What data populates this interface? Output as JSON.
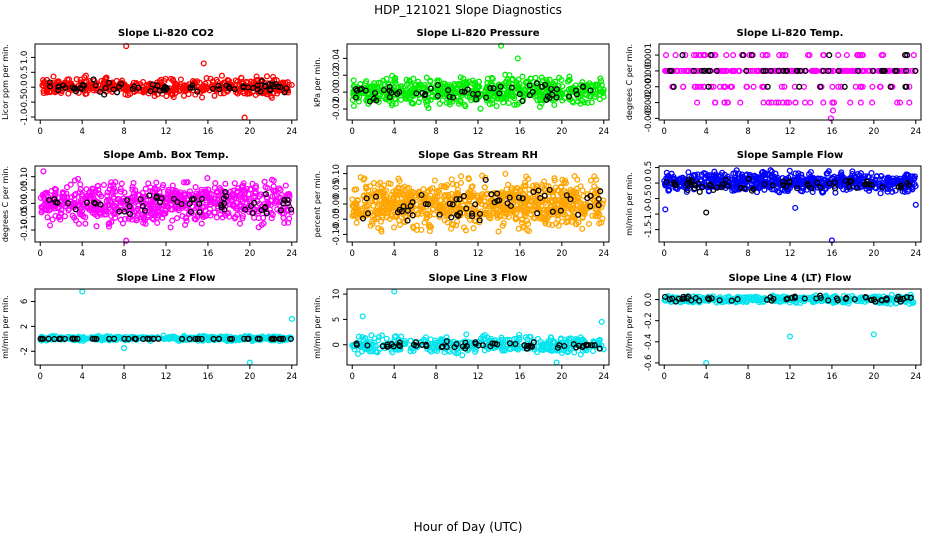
{
  "figure": {
    "title": "HDP_121021  Slope Diagnostics",
    "xlabel": "Hour of Day (UTC)"
  },
  "chart_data": [
    {
      "type": "scatter",
      "title": "Slope Li-820 CO2",
      "ylabel": "Licor ppm per min.",
      "xlim": [
        -0.5,
        24.5
      ],
      "ylim": [
        -1.1,
        1.45
      ],
      "yticks": [
        -1.0,
        -0.5,
        0.0,
        0.5,
        1.0
      ],
      "ytick_labels": [
        "-1.0",
        "-0.5",
        "0.0",
        "0.5",
        "1.0"
      ],
      "xticks": [
        0,
        4,
        8,
        12,
        16,
        20,
        24
      ],
      "xtick_labels": [
        "0",
        "4",
        "8",
        "12",
        "16",
        "20",
        "24"
      ],
      "series": [
        {
          "name": "points",
          "color": "#ff0000",
          "kind": "uniform",
          "count": 480,
          "y_min": -0.4,
          "y_max": 0.42
        },
        {
          "name": "hourly",
          "color": "#000000",
          "kind": "uniform",
          "count": 70,
          "y_min": -0.28,
          "y_max": 0.28
        }
      ],
      "outliers": [
        {
          "x": 8.2,
          "y": 1.38,
          "color": "#ff0000"
        },
        {
          "x": 19.5,
          "y": -1.02,
          "color": "#ff0000"
        },
        {
          "x": 15.6,
          "y": 0.8,
          "color": "#ff0000"
        }
      ]
    },
    {
      "type": "scatter",
      "title": "Slope Li-820 Pressure",
      "ylabel": "kPa per min.",
      "xlim": [
        -0.5,
        24.5
      ],
      "ylim": [
        -0.033,
        0.057
      ],
      "yticks": [
        -0.02,
        0.0,
        0.02,
        0.04
      ],
      "ytick_labels": [
        "-0.02",
        "0.00",
        "0.02",
        "0.04"
      ],
      "xticks": [
        0,
        4,
        8,
        12,
        16,
        20,
        24
      ],
      "xtick_labels": [
        "0",
        "4",
        "8",
        "12",
        "16",
        "20",
        "24"
      ],
      "series": [
        {
          "name": "points",
          "color": "#00ee00",
          "kind": "uniform",
          "count": 620,
          "y_min": -0.022,
          "y_max": 0.024
        },
        {
          "name": "hourly",
          "color": "#000000",
          "kind": "uniform",
          "count": 60,
          "y_min": -0.016,
          "y_max": 0.016
        }
      ],
      "outliers": [
        {
          "x": 14.2,
          "y": 0.055,
          "color": "#00ee00"
        },
        {
          "x": 15.8,
          "y": 0.04,
          "color": "#00ee00"
        }
      ]
    },
    {
      "type": "scatter",
      "title": "Slope Li-820 Temp.",
      "ylabel": "degrees C per min.",
      "xlim": [
        -0.5,
        24.5
      ],
      "ylim": [
        -0.0031,
        0.0017
      ],
      "yticks": [
        -0.003,
        -0.002,
        -0.001,
        0.0,
        0.001
      ],
      "ytick_labels": [
        "-0.003",
        "-0.002",
        "-0.001",
        "0.000",
        "0.001"
      ],
      "xticks": [
        0,
        4,
        8,
        12,
        16,
        20,
        24
      ],
      "xtick_labels": [
        "0",
        "4",
        "8",
        "12",
        "16",
        "20",
        "24"
      ],
      "series": [
        {
          "name": "points",
          "color": "#ff00ff",
          "kind": "levels",
          "count": 300,
          "levels": [
            0.0,
            0.0,
            0.0,
            0.0,
            0.0,
            0.001,
            -0.001,
            -0.002
          ]
        },
        {
          "name": "hourly",
          "color": "#000000",
          "kind": "levels",
          "count": 48,
          "levels": [
            0.0,
            0.0,
            0.0,
            0.0,
            0.001,
            -0.001
          ]
        }
      ],
      "outliers": [
        {
          "x": 15.9,
          "y": -0.003,
          "color": "#ff00ff"
        },
        {
          "x": 16.1,
          "y": -0.0025,
          "color": "#ff00ff"
        }
      ]
    },
    {
      "type": "scatter",
      "title": "Slope Amb. Box Temp.",
      "ylabel": "degrees C per min.",
      "xlim": [
        -0.5,
        24.5
      ],
      "ylim": [
        -0.145,
        0.14
      ],
      "yticks": [
        -0.1,
        -0.05,
        0.0,
        0.05,
        0.1
      ],
      "ytick_labels": [
        "-0.10",
        "-0.05",
        "0.00",
        "0.05",
        "0.10"
      ],
      "xticks": [
        0,
        4,
        8,
        12,
        16,
        20,
        24
      ],
      "xtick_labels": [
        "0",
        "4",
        "8",
        "12",
        "16",
        "20",
        "24"
      ],
      "series": [
        {
          "name": "points",
          "color": "#ff00ff",
          "kind": "uniform",
          "count": 700,
          "y_min": -0.11,
          "y_max": 0.11
        },
        {
          "name": "hourly",
          "color": "#000000",
          "kind": "uniform",
          "count": 55,
          "y_min": -0.06,
          "y_max": 0.06
        }
      ],
      "outliers": [
        {
          "x": 0.3,
          "y": 0.12,
          "color": "#ff00ff"
        },
        {
          "x": 8.2,
          "y": -0.14,
          "color": "#ff00ff"
        }
      ]
    },
    {
      "type": "scatter",
      "title": "Slope Gas Stream RH",
      "ylabel": "percent per min.",
      "xlim": [
        -0.5,
        24.5
      ],
      "ylim": [
        -0.125,
        0.125
      ],
      "yticks": [
        -0.1,
        -0.05,
        0.0,
        0.05,
        0.1
      ],
      "ytick_labels": [
        "-0.10",
        "-0.05",
        "0.00",
        "0.05",
        "0.10"
      ],
      "xticks": [
        0,
        4,
        8,
        12,
        16,
        20,
        24
      ],
      "xtick_labels": [
        "0",
        "4",
        "8",
        "12",
        "16",
        "20",
        "24"
      ],
      "series": [
        {
          "name": "points",
          "color": "#ffa500",
          "kind": "uniform",
          "count": 900,
          "y_min": -0.11,
          "y_max": 0.11
        },
        {
          "name": "hourly",
          "color": "#000000",
          "kind": "uniform",
          "count": 60,
          "y_min": -0.09,
          "y_max": 0.09
        }
      ],
      "outliers": []
    },
    {
      "type": "scatter",
      "title": "Slope Sample Flow",
      "ylabel": "ml/min per min.",
      "xlim": [
        -0.5,
        24.5
      ],
      "ylim": [
        -1.9,
        0.55
      ],
      "yticks": [
        -1.5,
        -1.0,
        -0.5,
        0.0,
        0.5
      ],
      "ytick_labels": [
        "-1.5",
        "-1.0",
        "-0.5",
        "0.0",
        "0.5"
      ],
      "xticks": [
        0,
        4,
        8,
        12,
        16,
        20,
        24
      ],
      "xtick_labels": [
        "0",
        "4",
        "8",
        "12",
        "16",
        "20",
        "24"
      ],
      "series": [
        {
          "name": "points",
          "color": "#0000ff",
          "kind": "uniform",
          "count": 650,
          "y_min": -0.4,
          "y_max": 0.45
        },
        {
          "name": "hourly",
          "color": "#000000",
          "kind": "uniform",
          "count": 60,
          "y_min": -0.35,
          "y_max": 0.2
        }
      ],
      "outliers": [
        {
          "x": 16.0,
          "y": -1.85,
          "color": "#0000ff"
        },
        {
          "x": 0.1,
          "y": -0.85,
          "color": "#0000ff"
        },
        {
          "x": 4.0,
          "y": -0.95,
          "color": "#000000"
        },
        {
          "x": 24.0,
          "y": -0.7,
          "color": "#0000ff"
        },
        {
          "x": 12.5,
          "y": -0.8,
          "color": "#0000ff"
        }
      ]
    },
    {
      "type": "scatter",
      "title": "Slope Line 2 Flow",
      "ylabel": "ml/min per min.",
      "xlim": [
        -0.5,
        24.5
      ],
      "ylim": [
        -4.2,
        8.0
      ],
      "yticks": [
        -2,
        2,
        6
      ],
      "ytick_labels": [
        "-2",
        "2",
        "6"
      ],
      "xticks": [
        0,
        4,
        8,
        12,
        16,
        20,
        24
      ],
      "xtick_labels": [
        "0",
        "4",
        "8",
        "12",
        "16",
        "20",
        "24"
      ],
      "series": [
        {
          "name": "points",
          "color": "#00e5ee",
          "kind": "uniform",
          "count": 420,
          "y_min": -0.45,
          "y_max": 0.6
        },
        {
          "name": "hourly",
          "color": "#000000",
          "kind": "uniform",
          "count": 55,
          "y_min": -0.05,
          "y_max": 0.05
        }
      ],
      "outliers": [
        {
          "x": 4.0,
          "y": 7.6,
          "color": "#00e5ee"
        },
        {
          "x": 20.0,
          "y": -3.8,
          "color": "#00e5ee"
        },
        {
          "x": 24.0,
          "y": 3.2,
          "color": "#00e5ee"
        },
        {
          "x": 8.0,
          "y": -1.5,
          "color": "#00e5ee"
        }
      ]
    },
    {
      "type": "scatter",
      "title": "Slope Line 3 Flow",
      "ylabel": "ml/min per min.",
      "xlim": [
        -0.5,
        24.5
      ],
      "ylim": [
        -4.0,
        11.0
      ],
      "yticks": [
        0,
        5,
        10
      ],
      "ytick_labels": [
        "0",
        "5",
        "10"
      ],
      "xticks": [
        0,
        4,
        8,
        12,
        16,
        20,
        24
      ],
      "xtick_labels": [
        "0",
        "4",
        "8",
        "12",
        "16",
        "20",
        "24"
      ],
      "series": [
        {
          "name": "points",
          "color": "#00e5ee",
          "kind": "uniform",
          "count": 380,
          "y_min": -2.2,
          "y_max": 2.2
        },
        {
          "name": "hourly",
          "color": "#000000",
          "kind": "uniform",
          "count": 60,
          "y_min": -1.0,
          "y_max": 0.8
        }
      ],
      "outliers": [
        {
          "x": 4.0,
          "y": 10.5,
          "color": "#00e5ee"
        },
        {
          "x": 1.0,
          "y": 5.6,
          "color": "#00e5ee"
        },
        {
          "x": 23.8,
          "y": 4.5,
          "color": "#00e5ee"
        },
        {
          "x": 19.5,
          "y": -3.5,
          "color": "#00e5ee"
        }
      ]
    },
    {
      "type": "scatter",
      "title": "Slope Line 4 (LT) Flow",
      "ylabel": "ml/min per min.",
      "xlim": [
        -0.5,
        24.5
      ],
      "ylim": [
        -0.62,
        0.1
      ],
      "yticks": [
        -0.6,
        -0.4,
        -0.2,
        0.0
      ],
      "ytick_labels": [
        "-0.6",
        "-0.4",
        "-0.2",
        "0.0"
      ],
      "xticks": [
        0,
        4,
        8,
        12,
        16,
        20,
        24
      ],
      "xtick_labels": [
        "0",
        "4",
        "8",
        "12",
        "16",
        "20",
        "24"
      ],
      "series": [
        {
          "name": "points",
          "color": "#00e5ee",
          "kind": "uniform",
          "count": 420,
          "y_min": -0.05,
          "y_max": 0.05
        },
        {
          "name": "hourly",
          "color": "#000000",
          "kind": "uniform",
          "count": 55,
          "y_min": -0.03,
          "y_max": 0.04
        }
      ],
      "outliers": [
        {
          "x": 4.0,
          "y": -0.6,
          "color": "#00e5ee"
        },
        {
          "x": 12.0,
          "y": -0.35,
          "color": "#00e5ee"
        },
        {
          "x": 20.0,
          "y": -0.33,
          "color": "#00e5ee"
        }
      ]
    }
  ]
}
